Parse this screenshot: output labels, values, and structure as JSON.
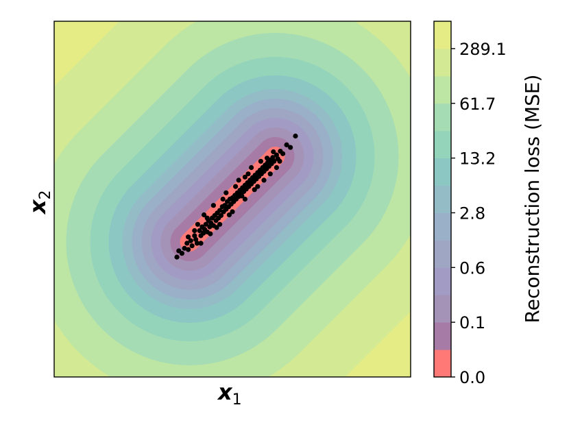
{
  "chart_data": {
    "type": "contour",
    "title": "",
    "xlabel": "x",
    "xlabel_sub": "1",
    "ylabel": "x",
    "ylabel_sub": "2",
    "x_ticks_shown": false,
    "y_ticks_shown": false,
    "colorbar": {
      "label": "Reconstruction loss (MSE)",
      "tick_labels": [
        "0.0",
        "0.1",
        "0.6",
        "2.8",
        "13.2",
        "61.7",
        "289.1"
      ],
      "levels": [
        {
          "color": "#ff7a76"
        },
        {
          "color": "#a67ba5"
        },
        {
          "color": "#a493b7"
        },
        {
          "color": "#a29bc3"
        },
        {
          "color": "#9fa6c4"
        },
        {
          "color": "#99b0c8"
        },
        {
          "color": "#93bcc6"
        },
        {
          "color": "#8cc7c3"
        },
        {
          "color": "#94d4bb"
        },
        {
          "color": "#a6dcb3"
        },
        {
          "color": "#bde5a4"
        },
        {
          "color": "#d3e994"
        },
        {
          "color": "#e5ec86"
        }
      ]
    },
    "scatter_points": [
      [
        -0.88,
        -0.92
      ],
      [
        -0.85,
        -0.82
      ],
      [
        -0.8,
        -0.86
      ],
      [
        -0.76,
        -0.78
      ],
      [
        -0.72,
        -0.7
      ],
      [
        -0.7,
        -0.8
      ],
      [
        -0.66,
        -0.66
      ],
      [
        -0.64,
        -0.74
      ],
      [
        -0.6,
        -0.58
      ],
      [
        -0.58,
        -0.64
      ],
      [
        -0.56,
        -0.7
      ],
      [
        -0.52,
        -0.5
      ],
      [
        -0.5,
        -0.58
      ],
      [
        -0.48,
        -0.44
      ],
      [
        -0.46,
        -0.54
      ],
      [
        -0.44,
        -0.48
      ],
      [
        -0.42,
        -0.4
      ],
      [
        -0.4,
        -0.52
      ],
      [
        -0.38,
        -0.34
      ],
      [
        -0.36,
        -0.44
      ],
      [
        -0.34,
        -0.38
      ],
      [
        -0.32,
        -0.3
      ],
      [
        -0.3,
        -0.42
      ],
      [
        -0.28,
        -0.26
      ],
      [
        -0.26,
        -0.34
      ],
      [
        -0.24,
        -0.22
      ],
      [
        -0.22,
        -0.3
      ],
      [
        -0.2,
        -0.18
      ],
      [
        -0.18,
        -0.26
      ],
      [
        -0.16,
        -0.12
      ],
      [
        -0.14,
        -0.2
      ],
      [
        -0.12,
        -0.1
      ],
      [
        -0.1,
        -0.16
      ],
      [
        -0.08,
        -0.04
      ],
      [
        -0.06,
        -0.12
      ],
      [
        -0.04,
        0.0
      ],
      [
        -0.02,
        -0.08
      ],
      [
        0.0,
        0.02
      ],
      [
        0.02,
        -0.04
      ],
      [
        0.04,
        0.06
      ],
      [
        0.06,
        0.0
      ],
      [
        0.08,
        0.1
      ],
      [
        0.1,
        0.04
      ],
      [
        0.12,
        0.14
      ],
      [
        0.14,
        0.08
      ],
      [
        0.16,
        0.18
      ],
      [
        0.18,
        0.12
      ],
      [
        0.2,
        0.22
      ],
      [
        0.22,
        0.16
      ],
      [
        0.24,
        0.26
      ],
      [
        0.26,
        0.2
      ],
      [
        0.28,
        0.3
      ],
      [
        0.3,
        0.24
      ],
      [
        0.32,
        0.34
      ],
      [
        0.34,
        0.28
      ],
      [
        0.36,
        0.38
      ],
      [
        0.38,
        0.32
      ],
      [
        0.4,
        0.42
      ],
      [
        0.42,
        0.36
      ],
      [
        0.44,
        0.46
      ],
      [
        0.46,
        0.4
      ],
      [
        0.48,
        0.5
      ],
      [
        0.5,
        0.44
      ],
      [
        0.52,
        0.54
      ],
      [
        0.54,
        0.48
      ],
      [
        0.56,
        0.58
      ],
      [
        0.58,
        0.52
      ],
      [
        0.6,
        0.62
      ],
      [
        0.62,
        0.56
      ],
      [
        0.64,
        0.66
      ],
      [
        0.66,
        0.6
      ],
      [
        0.7,
        0.7
      ],
      [
        0.72,
        0.64
      ],
      [
        0.76,
        0.76
      ],
      [
        0.8,
        0.72
      ],
      [
        0.86,
        0.86
      ],
      [
        0.92,
        0.82
      ],
      [
        1.0,
        1.0
      ],
      [
        -0.6,
        -0.5
      ],
      [
        -0.4,
        -0.3
      ],
      [
        -0.2,
        -0.4
      ],
      [
        0.0,
        -0.2
      ],
      [
        0.2,
        0.0
      ],
      [
        0.4,
        0.2
      ],
      [
        0.1,
        0.3
      ],
      [
        -0.1,
        0.1
      ],
      [
        0.3,
        0.5
      ],
      [
        0.5,
        0.3
      ],
      [
        -0.3,
        -0.1
      ],
      [
        0.6,
        0.4
      ],
      [
        -0.7,
        -0.6
      ],
      [
        0.7,
        0.5
      ],
      [
        -0.5,
        -0.7
      ],
      [
        0.45,
        0.6
      ],
      [
        -0.25,
        -0.45
      ],
      [
        0.25,
        0.4
      ],
      [
        -0.05,
        -0.25
      ],
      [
        0.15,
        0.05
      ],
      [
        0.35,
        0.15
      ],
      [
        -0.15,
        0.0
      ],
      [
        0.55,
        0.65
      ],
      [
        -0.35,
        -0.55
      ],
      [
        0.05,
        0.2
      ],
      [
        0.65,
        0.75
      ],
      [
        -0.45,
        -0.25
      ],
      [
        0.75,
        0.6
      ],
      [
        0.2,
        0.35
      ],
      [
        -0.55,
        -0.4
      ]
    ]
  }
}
